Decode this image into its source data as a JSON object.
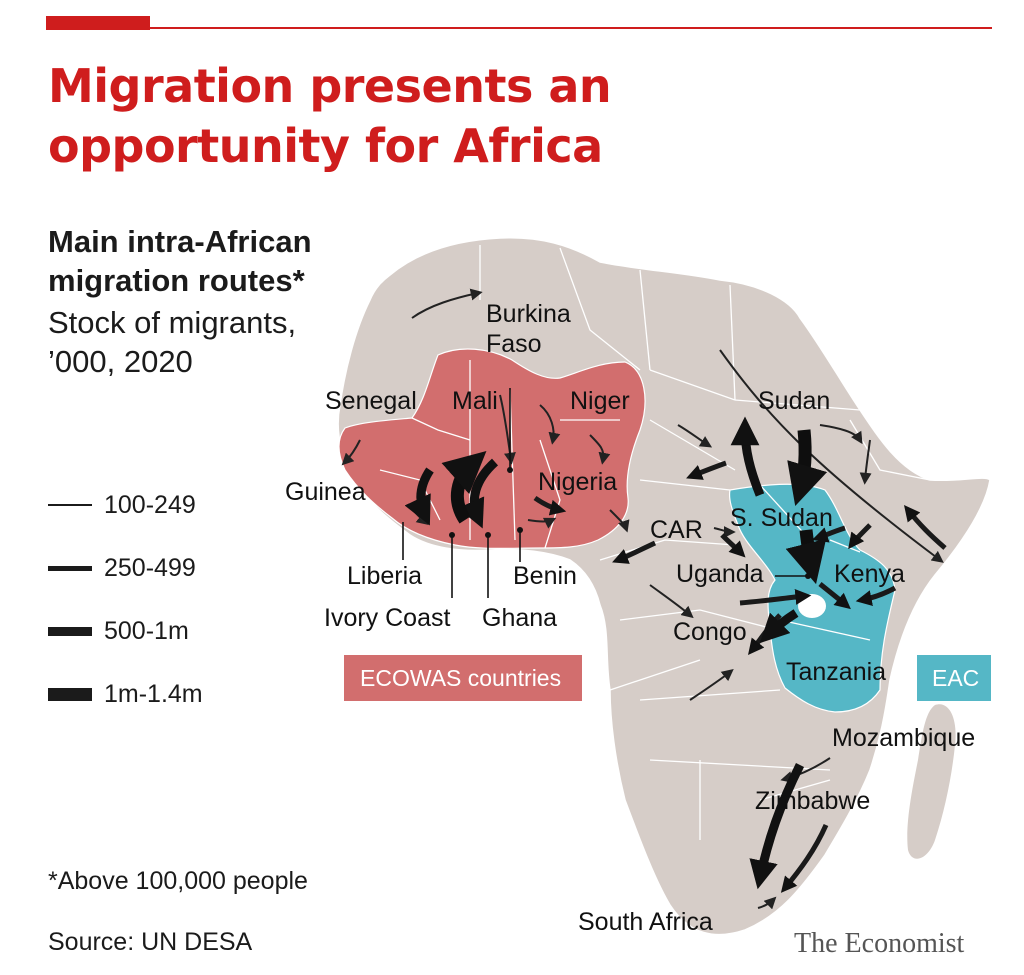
{
  "header": {
    "title": "Migration presents an opportunity for Africa",
    "subtitle_bold": "Main intra-African migration routes*",
    "subtitle_units": "Stock of migrants, ’000, 2020",
    "accent_color": "#cf1d1d"
  },
  "legend": {
    "items": [
      {
        "label": "100-249",
        "weight": 2
      },
      {
        "label": "250-499",
        "weight": 5
      },
      {
        "label": "500-1m",
        "weight": 9
      },
      {
        "label": "1m-1.4m",
        "weight": 13
      }
    ]
  },
  "regions": {
    "ecowas": {
      "label": "ECOWAS countries",
      "color": "#d26e6e"
    },
    "eac": {
      "label": "EAC",
      "color": "#55b7c6"
    },
    "land_color": "#d6cdc8"
  },
  "country_labels": {
    "burkina": "Burkina Faso",
    "mali": "Mali",
    "niger": "Niger",
    "senegal": "Senegal",
    "guinea": "Guinea",
    "nigeria": "Nigeria",
    "liberia": "Liberia",
    "ivory_coast": "Ivory Coast",
    "ghana": "Ghana",
    "benin": "Benin",
    "sudan": "Sudan",
    "s_sudan": "S. Sudan",
    "car": "CAR",
    "uganda": "Uganda",
    "kenya": "Kenya",
    "congo": "Congo",
    "tanzania": "Tanzania",
    "mozambique": "Mozambique",
    "zimbabwe": "Zimbabwe",
    "south_africa": "South Africa"
  },
  "footnote": "*Above 100,000 people",
  "source": "Source: UN DESA",
  "brand": "The Economist"
}
